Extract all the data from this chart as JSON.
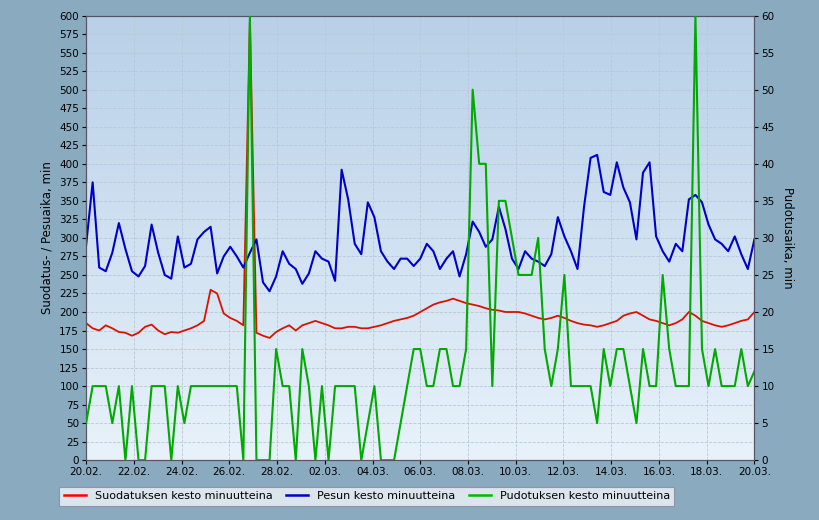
{
  "ylabel_left": "Suodatus- / Pesuaika, min",
  "ylabel_right": "Pudotusaika, min",
  "legend_labels": [
    "Suodatuksen kesto minuutteina",
    "Pesun kesto minuutteina",
    "Pudotuksen kesto minuutteina"
  ],
  "legend_colors": [
    "#ff0000",
    "#0000cc",
    "#00bb00"
  ],
  "ylim_left": [
    0,
    600
  ],
  "ylim_right": [
    0,
    60
  ],
  "yticks_left": [
    0,
    25,
    50,
    75,
    100,
    125,
    150,
    175,
    200,
    225,
    250,
    275,
    300,
    325,
    350,
    375,
    400,
    425,
    450,
    475,
    500,
    525,
    550,
    575,
    600
  ],
  "yticks_right": [
    0,
    5,
    10,
    15,
    20,
    25,
    30,
    35,
    40,
    45,
    50,
    55,
    60
  ],
  "x_tick_labels": [
    "20.02.",
    "22.02.",
    "24.02.",
    "26.02.",
    "28.02.",
    "02.03.",
    "04.03.",
    "06.03.",
    "08.03.",
    "10.03.",
    "12.03.",
    "14.03.",
    "16.03.",
    "18.03.",
    "20.03."
  ],
  "x_tick_days": [
    0,
    2,
    4,
    6,
    8,
    10,
    12,
    14,
    16,
    18,
    20,
    22,
    24,
    26,
    28
  ],
  "grid_color": "#b8c8d8",
  "border_color": "#555566",
  "fig_bg_color": "#8aaabf",
  "plot_bg_top": "#b8d0e8",
  "plot_bg_bottom": "#e8f2fa",
  "red_line_color": "#dd1100",
  "blue_line_color": "#0000cc",
  "green_line_color": "#00aa00",
  "red_data": [
    185,
    178,
    175,
    182,
    178,
    173,
    172,
    168,
    172,
    180,
    183,
    175,
    170,
    173,
    172,
    175,
    178,
    182,
    188,
    230,
    225,
    198,
    192,
    188,
    182,
    595,
    172,
    168,
    165,
    173,
    178,
    182,
    175,
    182,
    185,
    188,
    185,
    182,
    178,
    178,
    180,
    180,
    178,
    178,
    180,
    182,
    185,
    188,
    190,
    192,
    195,
    200,
    205,
    210,
    213,
    215,
    218,
    215,
    212,
    210,
    208,
    205,
    203,
    202,
    200,
    200,
    200,
    198,
    195,
    192,
    190,
    192,
    195,
    192,
    188,
    185,
    183,
    182,
    180,
    182,
    185,
    188,
    195,
    198,
    200,
    195,
    190,
    188,
    185,
    182,
    185,
    190,
    200,
    195,
    188,
    185,
    182,
    180,
    182,
    185,
    188,
    190,
    200
  ],
  "blue_data": [
    290,
    375,
    260,
    255,
    280,
    320,
    285,
    255,
    248,
    262,
    318,
    280,
    250,
    245,
    302,
    260,
    265,
    298,
    308,
    315,
    252,
    275,
    288,
    275,
    260,
    280,
    298,
    240,
    228,
    248,
    282,
    265,
    258,
    238,
    252,
    282,
    272,
    268,
    242,
    392,
    352,
    292,
    278,
    348,
    328,
    282,
    268,
    258,
    272,
    272,
    262,
    272,
    292,
    282,
    258,
    272,
    282,
    248,
    278,
    322,
    308,
    288,
    298,
    342,
    312,
    272,
    258,
    282,
    272,
    268,
    262,
    278,
    328,
    302,
    282,
    258,
    342,
    408,
    412,
    362,
    358,
    402,
    368,
    348,
    298,
    388,
    402,
    302,
    282,
    268,
    292,
    282,
    352,
    358,
    348,
    318,
    298,
    292,
    282,
    302,
    278,
    258,
    298
  ],
  "green_data": [
    5,
    10,
    10,
    10,
    5,
    10,
    0,
    10,
    0,
    0,
    10,
    10,
    10,
    0,
    10,
    5,
    10,
    10,
    10,
    10,
    10,
    10,
    10,
    10,
    0,
    60,
    0,
    0,
    0,
    15,
    10,
    10,
    0,
    15,
    10,
    0,
    10,
    0,
    10,
    10,
    10,
    10,
    0,
    5,
    10,
    0,
    0,
    0,
    5,
    10,
    15,
    15,
    10,
    10,
    15,
    15,
    10,
    10,
    15,
    50,
    40,
    40,
    10,
    35,
    35,
    30,
    25,
    25,
    25,
    30,
    15,
    10,
    15,
    25,
    10,
    10,
    10,
    10,
    5,
    15,
    10,
    15,
    15,
    10,
    5,
    15,
    10,
    10,
    25,
    15,
    10,
    10,
    10,
    60,
    15,
    10,
    15,
    10,
    10,
    10,
    15,
    10,
    12
  ],
  "n_points": 103,
  "date_range_days": 28
}
